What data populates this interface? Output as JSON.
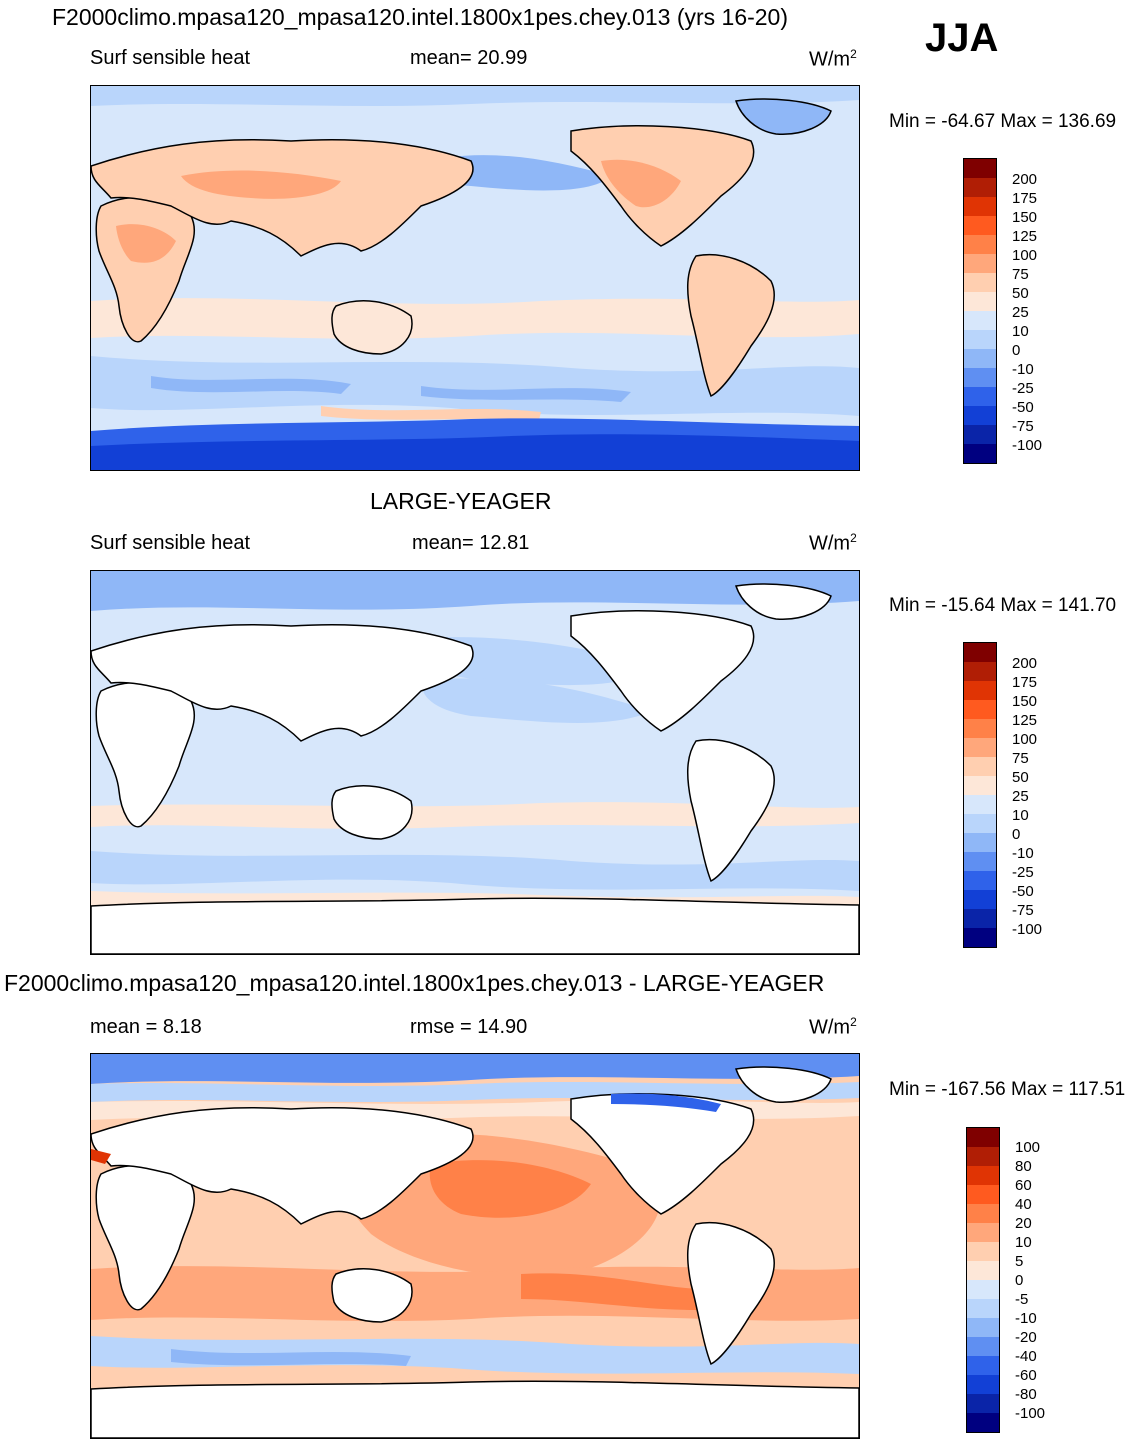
{
  "header": {
    "case_title": "F2000climo.mpasa120_mpasa120.intel.1800x1pes.chey.013 (yrs 16-20)",
    "season": "JJA"
  },
  "panels": [
    {
      "id": "test",
      "title": "",
      "variable": "Surf sensible heat",
      "left_stat": "Surf sensible heat",
      "center_stat": "mean=  20.99",
      "units": "W/m",
      "units_exp": "2",
      "minmax": "Min = -64.67 Max = 136.69",
      "levels": [
        "200",
        "175",
        "150",
        "125",
        "100",
        "75",
        "50",
        "25",
        "10",
        "0",
        "-10",
        "-25",
        "-50",
        "-75",
        "-100"
      ],
      "colors": [
        "#7f0000",
        "#b01e05",
        "#e03404",
        "#ff5a1f",
        "#ff8148",
        "#ffa77b",
        "#ffcfb0",
        "#fde7d8",
        "#d7e7fb",
        "#b9d5fb",
        "#8fb7f7",
        "#5f8ff2",
        "#2f62ea",
        "#1240d6",
        "#0a24a8",
        "#000080"
      ]
    },
    {
      "id": "ref",
      "title": "LARGE-YEAGER",
      "variable": "Surf sensible heat",
      "left_stat": "Surf sensible heat",
      "center_stat": "mean=  12.81",
      "units": "W/m",
      "units_exp": "2",
      "minmax": "Min = -15.64 Max = 141.70",
      "levels": [
        "200",
        "175",
        "150",
        "125",
        "100",
        "75",
        "50",
        "25",
        "10",
        "0",
        "-10",
        "-25",
        "-50",
        "-75",
        "-100"
      ],
      "colors": [
        "#7f0000",
        "#b01e05",
        "#e03404",
        "#ff5a1f",
        "#ff8148",
        "#ffa77b",
        "#ffcfb0",
        "#fde7d8",
        "#d7e7fb",
        "#b9d5fb",
        "#8fb7f7",
        "#5f8ff2",
        "#2f62ea",
        "#1240d6",
        "#0a24a8",
        "#000080"
      ]
    },
    {
      "id": "diff",
      "title": "F2000climo.mpasa120_mpasa120.intel.1800x1pes.chey.013 - LARGE-YEAGER",
      "left_stat": "mean =   8.18",
      "center_stat": "rmse =   14.90",
      "units": "W/m",
      "units_exp": "2",
      "minmax": "Min = -167.56 Max = 117.51",
      "levels": [
        "100",
        "80",
        "60",
        "40",
        "20",
        "10",
        "5",
        "0",
        "-5",
        "-10",
        "-20",
        "-40",
        "-60",
        "-80",
        "-100"
      ],
      "colors": [
        "#7f0000",
        "#b01e05",
        "#e03404",
        "#ff5a1f",
        "#ff8148",
        "#ffa77b",
        "#ffcfb0",
        "#fde7d8",
        "#d7e7fb",
        "#b9d5fb",
        "#8fb7f7",
        "#5f8ff2",
        "#2f62ea",
        "#1240d6",
        "#0a24a8",
        "#000080"
      ]
    }
  ]
}
